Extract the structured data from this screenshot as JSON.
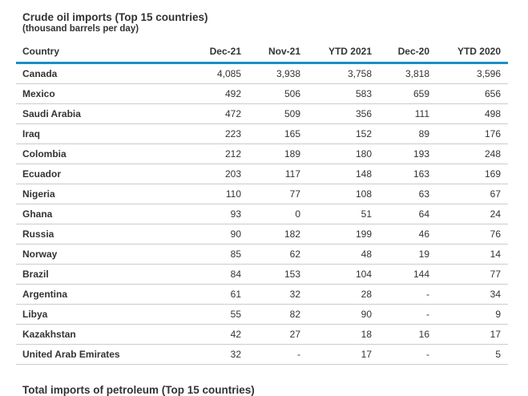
{
  "table": {
    "title": "Crude oil imports (Top 15 countries)",
    "subtitle": "(thousand barrels per day)",
    "accent_color": "#1a8fc4",
    "columns": [
      "Country",
      "Dec-21",
      "Nov-21",
      "YTD 2021",
      "Dec-20",
      "YTD 2020"
    ],
    "rows": [
      [
        "Canada",
        "4,085",
        "3,938",
        "3,758",
        "3,818",
        "3,596"
      ],
      [
        "Mexico",
        "492",
        "506",
        "583",
        "659",
        "656"
      ],
      [
        "Saudi Arabia",
        "472",
        "509",
        "356",
        "111",
        "498"
      ],
      [
        "Iraq",
        "223",
        "165",
        "152",
        "89",
        "176"
      ],
      [
        "Colombia",
        "212",
        "189",
        "180",
        "193",
        "248"
      ],
      [
        "Ecuador",
        "203",
        "117",
        "148",
        "163",
        "169"
      ],
      [
        "Nigeria",
        "110",
        "77",
        "108",
        "63",
        "67"
      ],
      [
        "Ghana",
        "93",
        "0",
        "51",
        "64",
        "24"
      ],
      [
        "Russia",
        "90",
        "182",
        "199",
        "46",
        "76"
      ],
      [
        "Norway",
        "85",
        "62",
        "48",
        "19",
        "14"
      ],
      [
        "Brazil",
        "84",
        "153",
        "104",
        "144",
        "77"
      ],
      [
        "Argentina",
        "61",
        "32",
        "28",
        "-",
        "34"
      ],
      [
        "Libya",
        "55",
        "82",
        "90",
        "-",
        "9"
      ],
      [
        "Kazakhstan",
        "42",
        "27",
        "18",
        "16",
        "17"
      ],
      [
        "United Arab Emirates",
        "32",
        "-",
        "17",
        "-",
        "5"
      ]
    ]
  },
  "next_section": {
    "title": "Total imports of petroleum (Top 15 countries)"
  }
}
